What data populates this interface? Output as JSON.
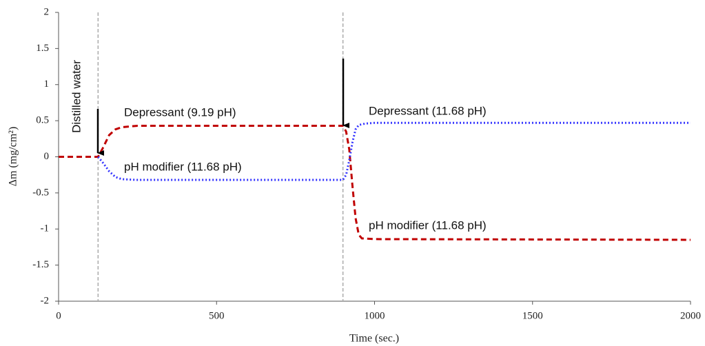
{
  "chart_data": {
    "type": "line",
    "x_label": "Time (sec.)",
    "y_label": "Δm (mg/cm²)",
    "xlim": [
      0,
      2000
    ],
    "xticks": [
      0,
      500,
      1000,
      1500,
      2000
    ],
    "ylim": [
      -2,
      2
    ],
    "yticks": [
      -2,
      -1.5,
      -1,
      -0.5,
      0,
      0.5,
      1,
      1.5,
      2
    ],
    "event_lines": [
      125,
      900
    ],
    "series": [
      {
        "color": "#c00000",
        "dash": "dashed",
        "x": [
          0,
          125,
          140,
          160,
          180,
          200,
          250,
          300,
          900,
          910,
          920,
          930,
          940,
          950,
          960,
          1000,
          2000
        ],
        "values": [
          0,
          0,
          0.12,
          0.3,
          0.38,
          0.41,
          0.43,
          0.43,
          0.43,
          0.35,
          0.1,
          -0.4,
          -0.85,
          -1.08,
          -1.13,
          -1.14,
          -1.15
        ]
      },
      {
        "color": "#3333ff",
        "dash": "dotted",
        "x": [
          125,
          140,
          160,
          180,
          200,
          250,
          900,
          910,
          920,
          930,
          940,
          950,
          970,
          1000,
          2000
        ],
        "values": [
          0,
          -0.08,
          -0.2,
          -0.28,
          -0.31,
          -0.32,
          -0.32,
          -0.25,
          -0.05,
          0.2,
          0.38,
          0.44,
          0.46,
          0.47,
          0.47
        ]
      }
    ],
    "annotations": [
      "Distilled water",
      "Depressant (9.19 pH)",
      "pH modifier (11.68 pH)",
      "Depressant (11.68 pH)",
      "pH modifier (11.68 pH)"
    ]
  }
}
